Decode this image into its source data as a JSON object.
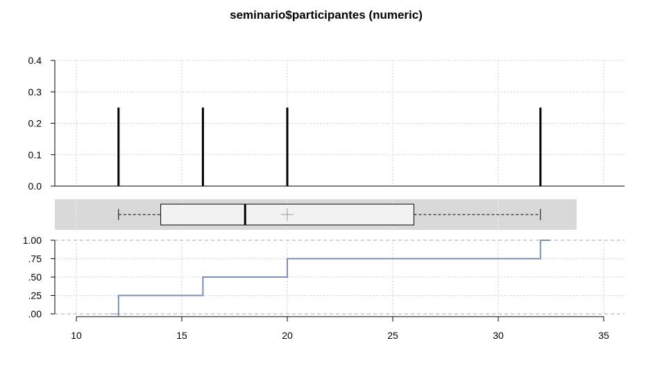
{
  "title": "seminario$participantes (numeric)",
  "colors": {
    "needle": "#000000",
    "ecdf": "#7a8fb8",
    "box_band": "#d9d9d9",
    "box_fill": "#f2f2f2",
    "grid": "#bfbfbf",
    "mean_marker": "#999999"
  },
  "chart_data": [
    {
      "name": "frequency",
      "type": "bar",
      "x": [
        12,
        16,
        20,
        32
      ],
      "values": [
        0.25,
        0.25,
        0.25,
        0.25
      ],
      "ylim": [
        0,
        0.4
      ],
      "yticks": [
        0,
        0.1,
        0.2,
        0.3,
        0.4
      ],
      "ytick_labels": [
        "0.0",
        "0.1",
        "0.2",
        "0.3",
        "0.4"
      ],
      "grid": true
    },
    {
      "name": "boxplot",
      "type": "box",
      "min": 12,
      "q1": 14,
      "median": 18,
      "q3": 26,
      "max": 32,
      "mean": 20
    },
    {
      "name": "ecdf",
      "type": "line",
      "x": [
        12,
        16,
        20,
        32
      ],
      "y": [
        0.25,
        0.5,
        0.75,
        1.0
      ],
      "ylim": [
        0,
        1
      ],
      "yticks": [
        0,
        0.25,
        0.5,
        0.75,
        1.0
      ],
      "ytick_labels": [
        ".00",
        ".25",
        ".50",
        ".75",
        "1.00"
      ],
      "xlim": [
        10,
        35
      ],
      "xticks": [
        10,
        15,
        20,
        25,
        30,
        35
      ],
      "xtick_labels": [
        "10",
        "15",
        "20",
        "25",
        "30",
        "35"
      ],
      "grid": true
    }
  ]
}
